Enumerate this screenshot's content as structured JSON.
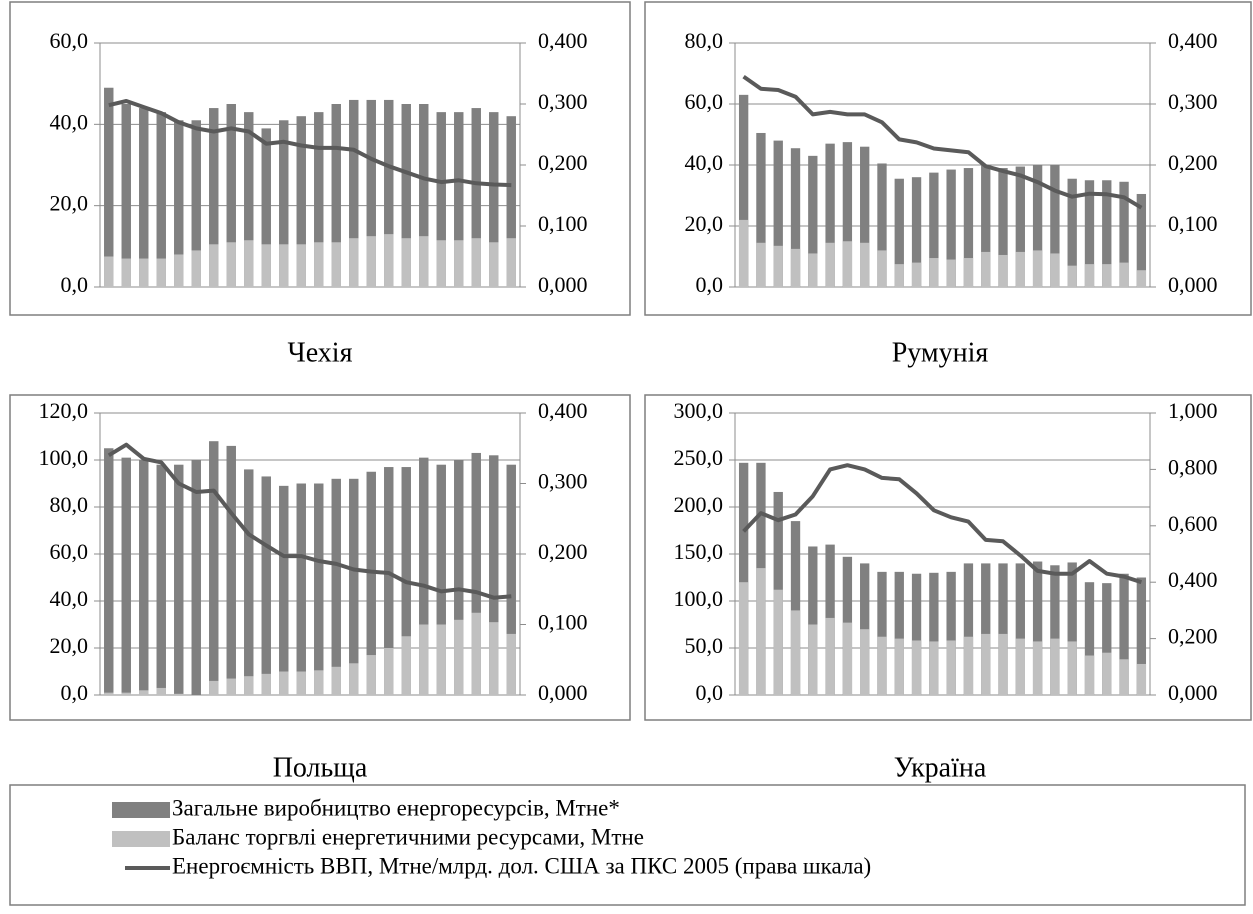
{
  "chart_data": [
    {
      "type": "bar-line",
      "title": "Чехія",
      "ylim": [
        0,
        60
      ],
      "yticks": [
        {
          "value": 0,
          "label": "0,0"
        },
        {
          "value": 20,
          "label": "20,0"
        },
        {
          "value": 40,
          "label": "40,0"
        },
        {
          "value": 60,
          "label": "60,0"
        }
      ],
      "y2lim": [
        0,
        0.4
      ],
      "y2ticks": [
        {
          "value": 0,
          "label": "0,000"
        },
        {
          "value": 0.1,
          "label": "0,100"
        },
        {
          "value": 0.2,
          "label": "0,200"
        },
        {
          "value": 0.3,
          "label": "0,300"
        },
        {
          "value": 0.4,
          "label": "0,400"
        }
      ],
      "series": [
        {
          "name": "Загальне виробництво енергоресурсів, Мтне*",
          "color": "#808080",
          "values": [
            49,
            45,
            44,
            43,
            41,
            41,
            44,
            45,
            43,
            39,
            41,
            42,
            43,
            45,
            46,
            46,
            46,
            45,
            45,
            43,
            43,
            44,
            43,
            42
          ]
        },
        {
          "name": "Баланс торгвлі енергетичними ресурсами, Мтне",
          "color": "#c0c0c0",
          "values": [
            7.5,
            7,
            7,
            7,
            8,
            9,
            10.5,
            11,
            11.5,
            10.5,
            10.5,
            10.5,
            11,
            11,
            12,
            12.5,
            13,
            12,
            12.5,
            11.5,
            11.5,
            12,
            11,
            12
          ]
        },
        {
          "name": "Енергоємність ВВП, Мтне/млрд. дол. США за ПКС 2005 (права шкала)",
          "color": "#5a5a5a",
          "axis": "y2",
          "values": [
            0.298,
            0.305,
            0.295,
            0.285,
            0.27,
            0.26,
            0.255,
            0.26,
            0.255,
            0.235,
            0.238,
            0.232,
            0.228,
            0.228,
            0.225,
            0.21,
            0.198,
            0.188,
            0.178,
            0.172,
            0.175,
            0.17,
            0.168,
            0.167
          ]
        }
      ]
    },
    {
      "type": "bar-line",
      "title": "Румунія",
      "ylim": [
        0,
        80
      ],
      "yticks": [
        {
          "value": 0,
          "label": "0,0"
        },
        {
          "value": 20,
          "label": "20,0"
        },
        {
          "value": 40,
          "label": "40,0"
        },
        {
          "value": 60,
          "label": "60,0"
        },
        {
          "value": 80,
          "label": "80,0"
        }
      ],
      "y2lim": [
        0,
        0.4
      ],
      "y2ticks": [
        {
          "value": 0,
          "label": "0,000"
        },
        {
          "value": 0.1,
          "label": "0,100"
        },
        {
          "value": 0.2,
          "label": "0,200"
        },
        {
          "value": 0.3,
          "label": "0,300"
        },
        {
          "value": 0.4,
          "label": "0,400"
        }
      ],
      "series": [
        {
          "name": "Загальне виробництво енергоресурсів, Мтне*",
          "color": "#808080",
          "values": [
            63,
            50.5,
            48,
            45.5,
            43,
            47,
            47.5,
            46,
            40.5,
            35.5,
            36,
            37.5,
            38.5,
            39,
            40,
            39,
            39.5,
            40,
            40,
            35.5,
            35,
            35,
            34.5,
            30.5
          ]
        },
        {
          "name": "Баланс торгвлі енергетичними ресурсами, Мтне",
          "color": "#c0c0c0",
          "values": [
            22,
            14.5,
            13.5,
            12.5,
            11,
            14.5,
            15,
            14.5,
            12,
            7.5,
            8,
            9.5,
            9,
            9.5,
            11.5,
            10.5,
            11.5,
            12,
            11,
            7,
            7.5,
            7.5,
            8,
            5.5
          ]
        },
        {
          "name": "Енергоємність ВВП, Мтне/млрд. дол. США за ПКС 2005 (права шкала)",
          "color": "#5a5a5a",
          "axis": "y2",
          "values": [
            0.345,
            0.325,
            0.323,
            0.312,
            0.283,
            0.287,
            0.283,
            0.283,
            0.27,
            0.242,
            0.237,
            0.227,
            0.224,
            0.221,
            0.198,
            0.19,
            0.183,
            0.172,
            0.158,
            0.148,
            0.153,
            0.152,
            0.147,
            0.13
          ]
        }
      ]
    },
    {
      "type": "bar-line",
      "title": "Польща",
      "ylim": [
        0,
        120
      ],
      "yticks": [
        {
          "value": 0,
          "label": "0,0"
        },
        {
          "value": 20,
          "label": "20,0"
        },
        {
          "value": 40,
          "label": "40,0"
        },
        {
          "value": 60,
          "label": "60,0"
        },
        {
          "value": 80,
          "label": "80,0"
        },
        {
          "value": 100,
          "label": "100,0"
        },
        {
          "value": 120,
          "label": "120,0"
        }
      ],
      "y2lim": [
        0,
        0.4
      ],
      "y2ticks": [
        {
          "value": 0,
          "label": "0,000"
        },
        {
          "value": 0.1,
          "label": "0,100"
        },
        {
          "value": 0.2,
          "label": "0,200"
        },
        {
          "value": 0.3,
          "label": "0,300"
        },
        {
          "value": 0.4,
          "label": "0,400"
        }
      ],
      "series": [
        {
          "name": "Загальне виробництво енергоресурсів, Мтне*",
          "color": "#808080",
          "values": [
            105,
            101,
            100,
            98,
            98,
            100,
            108,
            106,
            96,
            93,
            89,
            90,
            90,
            92,
            92,
            95,
            97,
            97,
            101,
            98,
            100,
            103,
            102,
            98
          ]
        },
        {
          "name": "Баланс торгвлі енергетичними ресурсами, Мтне",
          "color": "#c0c0c0",
          "values": [
            1,
            1,
            2,
            3,
            0.5,
            0,
            6,
            7,
            8,
            9,
            10,
            10,
            10.5,
            12,
            13.5,
            17,
            20,
            25,
            30,
            30,
            32,
            35,
            31,
            26
          ]
        },
        {
          "name": "Енергоємність ВВП, Мтне/млрд. дол. США за ПКС 2005 (права шкала)",
          "color": "#5a5a5a",
          "axis": "y2",
          "values": [
            0.34,
            0.355,
            0.335,
            0.33,
            0.3,
            0.288,
            0.29,
            0.258,
            0.228,
            0.212,
            0.197,
            0.197,
            0.19,
            0.186,
            0.178,
            0.175,
            0.173,
            0.16,
            0.155,
            0.147,
            0.15,
            0.146,
            0.138,
            0.14
          ]
        }
      ]
    },
    {
      "type": "bar-line",
      "title": "Україна",
      "ylim": [
        0,
        300
      ],
      "yticks": [
        {
          "value": 0,
          "label": "0,0"
        },
        {
          "value": 50,
          "label": "50,0"
        },
        {
          "value": 100,
          "label": "100,0"
        },
        {
          "value": 150,
          "label": "150,0"
        },
        {
          "value": 200,
          "label": "200,0"
        },
        {
          "value": 250,
          "label": "250,0"
        },
        {
          "value": 300,
          "label": "300,0"
        }
      ],
      "y2lim": [
        0,
        1
      ],
      "y2ticks": [
        {
          "value": 0,
          "label": "0,000"
        },
        {
          "value": 0.2,
          "label": "0,200"
        },
        {
          "value": 0.4,
          "label": "0,400"
        },
        {
          "value": 0.6,
          "label": "0,600"
        },
        {
          "value": 0.8,
          "label": "0,800"
        },
        {
          "value": 1,
          "label": "1,000"
        }
      ],
      "series": [
        {
          "name": "Загальне виробництво енергоресурсів, Мтне*",
          "color": "#808080",
          "values": [
            247,
            247,
            216,
            185,
            158,
            160,
            147,
            140,
            131,
            131,
            129,
            130,
            131,
            140,
            140,
            140,
            140,
            142,
            138,
            141,
            120,
            119,
            129,
            125
          ]
        },
        {
          "name": "Баланс торгвлі енергетичними ресурсами, Мтне",
          "color": "#c0c0c0",
          "values": [
            120,
            135,
            112,
            90,
            75,
            82,
            77,
            70,
            62,
            60,
            58,
            57,
            58,
            62,
            65,
            65,
            60,
            57,
            60,
            57,
            42,
            45,
            38,
            33
          ]
        },
        {
          "name": "Енергоємність ВВП, Мтне/млрд. дол. США за ПКС 2005 (права шкала)",
          "color": "#5a5a5a",
          "axis": "y2",
          "values": [
            0.58,
            0.645,
            0.62,
            0.64,
            0.705,
            0.8,
            0.815,
            0.8,
            0.77,
            0.765,
            0.715,
            0.655,
            0.63,
            0.615,
            0.55,
            0.545,
            0.495,
            0.44,
            0.43,
            0.43,
            0.475,
            0.43,
            0.42,
            0.4
          ]
        }
      ]
    }
  ]
}
